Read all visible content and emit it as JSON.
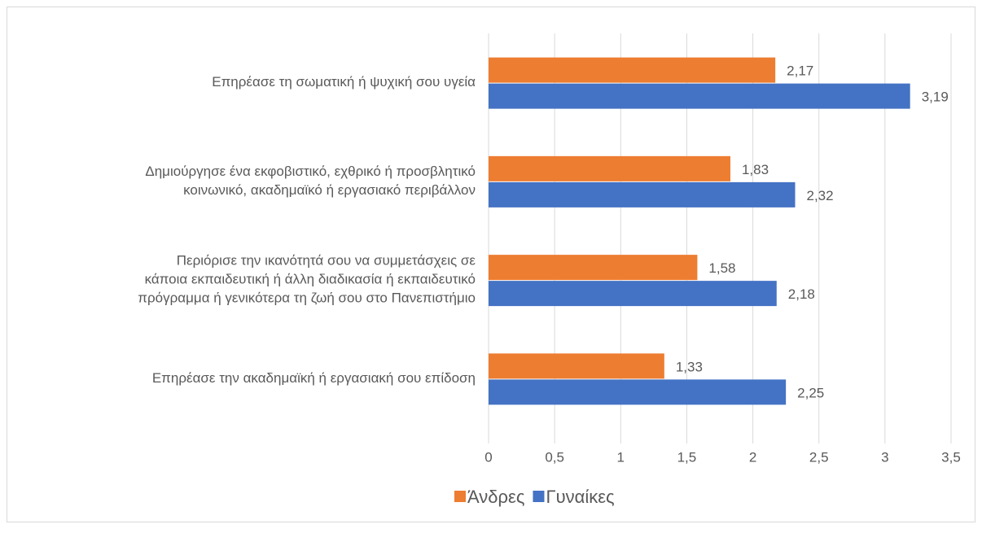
{
  "chart_data": {
    "type": "bar",
    "orientation": "horizontal",
    "categories": [
      [
        "Επηρέασε τη σωματική ή ψυχική σου υγεία"
      ],
      [
        "Δημιούργησε ένα εκφοβιστικό, εχθρικό ή προσβλητικό",
        "κοινωνικό, ακαδημαϊκό ή εργασιακό περιβάλλον"
      ],
      [
        "Περιόρισε την ικανότητά σου να συμμετάσχεις σε",
        "κάποια εκπαιδευτική ή άλλη διαδικασία ή εκπαιδευτικό",
        "πρόγραμμα ή γενικότερα τη ζωή σου στο Πανεπιστήμιο"
      ],
      [
        "Επηρέασε την ακαδημαϊκή ή εργασιακή σου επίδοση"
      ]
    ],
    "series": [
      {
        "name": "Άνδρες",
        "color": "#ed7d31",
        "values": [
          2.17,
          1.83,
          1.58,
          1.33
        ],
        "value_labels": [
          "2,17",
          "1,83",
          "1,58",
          "1,33"
        ]
      },
      {
        "name": "Γυναίκες",
        "color": "#4472c4",
        "values": [
          3.19,
          2.32,
          2.18,
          2.25
        ],
        "value_labels": [
          "3,19",
          "2,32",
          "2,18",
          "2,25"
        ]
      }
    ],
    "xlim": [
      0,
      3.5
    ],
    "xticks": [
      0,
      {
        "value": 0.5,
        "label": "0,5"
      },
      1,
      {
        "value": 1.5,
        "label": "1,5"
      },
      2,
      {
        "value": 2.5,
        "label": "2,5"
      },
      3,
      {
        "value": 3.5,
        "label": "3,5"
      }
    ],
    "grid": true,
    "legend": "bottom"
  }
}
